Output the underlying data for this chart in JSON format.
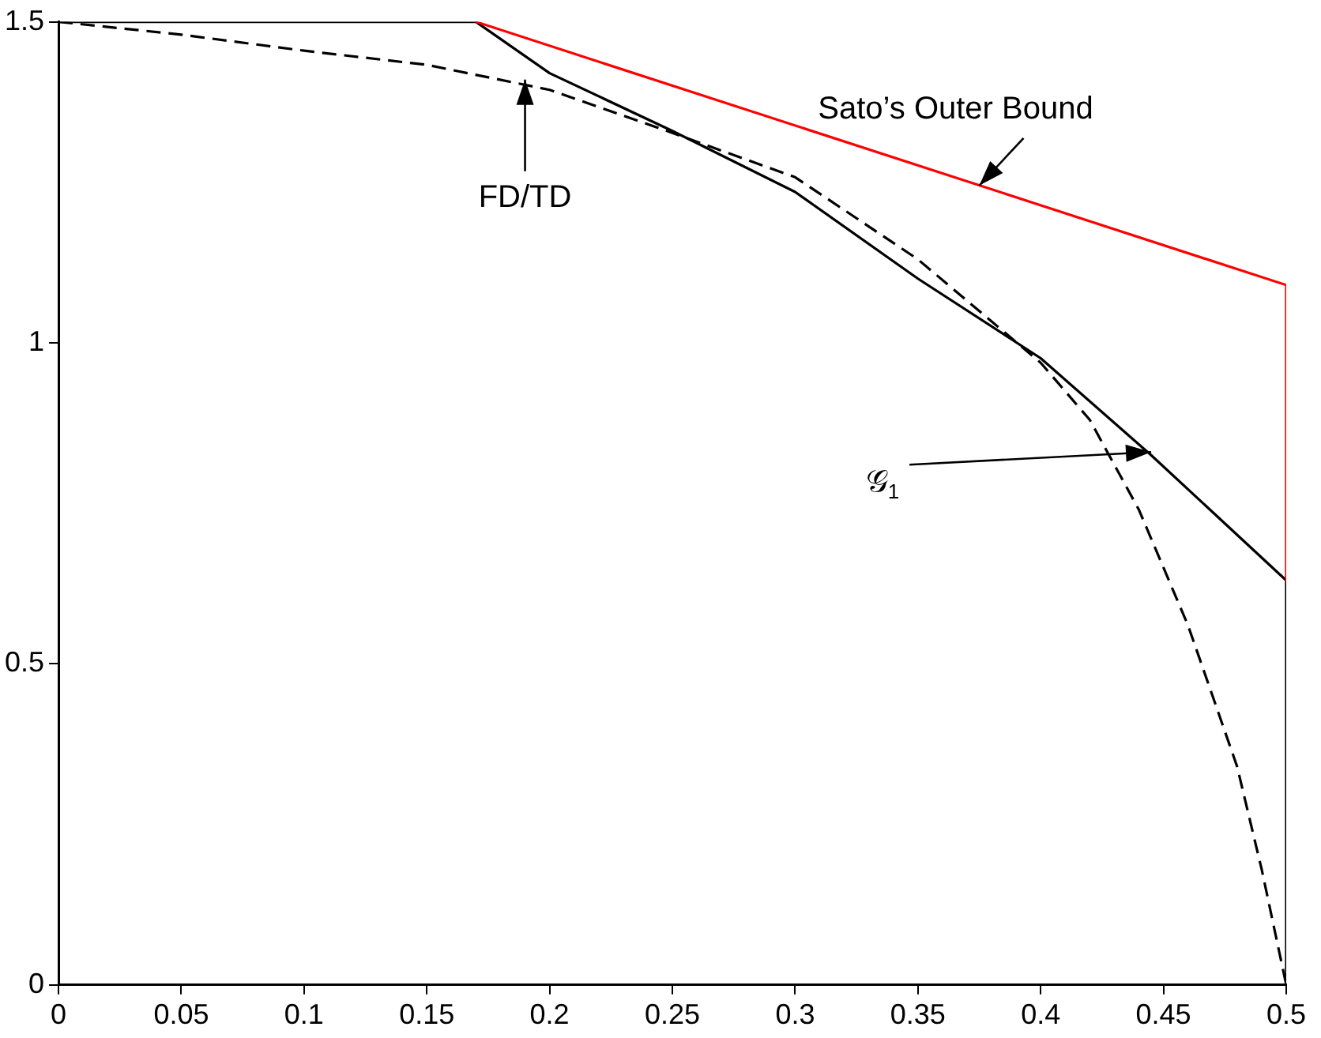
{
  "chart_data": {
    "type": "line",
    "xlim": [
      0,
      0.5
    ],
    "ylim": [
      0,
      1.5
    ],
    "xticks": [
      0,
      0.05,
      0.1,
      0.15,
      0.2,
      0.25,
      0.3,
      0.35,
      0.4,
      0.45,
      0.5
    ],
    "yticks": [
      0,
      0.5,
      1,
      1.5
    ],
    "grid": false,
    "legend": false,
    "marker": "none",
    "series": [
      {
        "color": "#ff0000",
        "line_style": "solid",
        "x": [
          0.17,
          0.5,
          0.5
        ],
        "values": [
          1.5,
          1.09,
          0.63
        ]
      },
      {
        "color": "#000000",
        "line_style": "solid",
        "x": [
          0,
          0.17,
          0.2,
          0.25,
          0.3,
          0.35,
          0.4,
          0.445,
          0.5,
          0.5
        ],
        "values": [
          1.5,
          1.5,
          1.42,
          1.33,
          1.235,
          1.1,
          0.976,
          0.825,
          0.63,
          0
        ]
      },
      {
        "color": "#000000",
        "line_style": "dashed",
        "x": [
          0,
          0.05,
          0.1,
          0.15,
          0.2,
          0.25,
          0.3,
          0.35,
          0.4,
          0.42,
          0.44,
          0.46,
          0.48,
          0.49,
          0.5
        ],
        "values": [
          1.5,
          1.48,
          1.455,
          1.433,
          1.394,
          1.327,
          1.258,
          1.13,
          0.969,
          0.88,
          0.74,
          0.56,
          0.34,
          0.18,
          0
        ]
      }
    ],
    "annotations": [
      {
        "text": "Sato’s Outer Bound",
        "x": 0.375,
        "y": 1.245
      },
      {
        "text": "FD/TD",
        "x": 0.19,
        "y": 1.41
      },
      {
        "text": "𝒢$_{1}$",
        "x": 0.445,
        "y": 0.83
      }
    ]
  }
}
